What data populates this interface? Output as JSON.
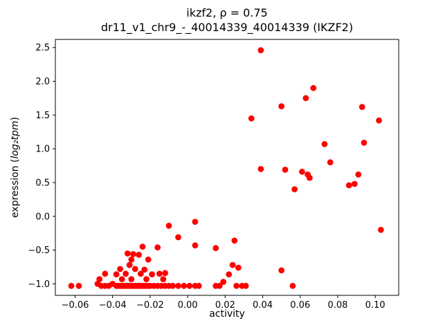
{
  "chart_data": {
    "type": "scatter",
    "title": "ikzf2, ρ = 0.75",
    "subtitle": "dr11_v1_chr9_-_40014339_40014339 (IKZF2)",
    "xlabel": "activity",
    "ylabel_prefix": "expression (",
    "ylabel_math": "log₂tpm",
    "ylabel_suffix": ")",
    "xlim": [
      -0.0705,
      0.1125
    ],
    "ylim": [
      -1.17,
      2.62
    ],
    "xticks": [
      -0.06,
      -0.04,
      -0.02,
      0.0,
      0.02,
      0.04,
      0.06,
      0.08,
      0.1
    ],
    "xtick_labels": [
      "−0.06",
      "−0.04",
      "−0.02",
      "0.00",
      "0.02",
      "0.04",
      "0.06",
      "0.08",
      "0.10"
    ],
    "yticks": [
      -1.0,
      -0.5,
      0.0,
      0.5,
      1.0,
      1.5,
      2.0,
      2.5
    ],
    "ytick_labels": [
      "−1.0",
      "−0.5",
      "0.0",
      "0.5",
      "1.0",
      "1.5",
      "2.0",
      "2.5"
    ],
    "grid": false,
    "legend": null,
    "marker_color": "#ff0000",
    "points": [
      [
        0.039,
        2.46
      ],
      [
        0.067,
        1.9
      ],
      [
        0.063,
        1.75
      ],
      [
        0.05,
        1.63
      ],
      [
        0.093,
        1.62
      ],
      [
        0.034,
        1.45
      ],
      [
        0.102,
        1.42
      ],
      [
        0.094,
        1.09
      ],
      [
        0.073,
        1.07
      ],
      [
        0.076,
        0.8
      ],
      [
        0.039,
        0.7
      ],
      [
        0.052,
        0.69
      ],
      [
        0.061,
        0.66
      ],
      [
        0.064,
        0.62
      ],
      [
        0.091,
        0.62
      ],
      [
        0.065,
        0.57
      ],
      [
        0.089,
        0.48
      ],
      [
        0.086,
        0.46
      ],
      [
        0.057,
        0.4
      ],
      [
        0.103,
        -0.2
      ],
      [
        0.05,
        -0.8
      ],
      [
        0.056,
        -1.03
      ],
      [
        -0.01,
        -0.14
      ],
      [
        0.004,
        -0.08
      ],
      [
        -0.005,
        -0.31
      ],
      [
        0.004,
        -0.43
      ],
      [
        -0.016,
        -0.46
      ],
      [
        0.015,
        -0.47
      ],
      [
        0.025,
        -0.36
      ],
      [
        0.024,
        -0.72
      ],
      [
        0.027,
        -0.76
      ],
      [
        -0.032,
        -0.55
      ],
      [
        -0.029,
        -0.56
      ],
      [
        -0.026,
        -0.57
      ],
      [
        -0.024,
        -0.45
      ],
      [
        -0.03,
        -0.64
      ],
      [
        -0.021,
        -0.64
      ],
      [
        -0.031,
        -0.72
      ],
      [
        -0.036,
        -0.78
      ],
      [
        -0.028,
        -0.78
      ],
      [
        -0.023,
        -0.79
      ],
      [
        -0.044,
        -0.85
      ],
      [
        -0.038,
        -0.86
      ],
      [
        -0.033,
        -0.85
      ],
      [
        -0.025,
        -0.85
      ],
      [
        -0.019,
        -0.86
      ],
      [
        -0.015,
        -0.85
      ],
      [
        -0.012,
        -0.84
      ],
      [
        0.022,
        -0.86
      ],
      [
        -0.047,
        -0.93
      ],
      [
        -0.035,
        -0.93
      ],
      [
        -0.03,
        -0.93
      ],
      [
        -0.022,
        -0.93
      ],
      [
        -0.013,
        -0.93
      ],
      [
        0.019,
        -0.97
      ],
      [
        -0.062,
        -1.03
      ],
      [
        -0.058,
        -1.03
      ],
      [
        -0.048,
        -1.0
      ],
      [
        -0.046,
        -1.03
      ],
      [
        -0.044,
        -1.03
      ],
      [
        -0.042,
        -1.03
      ],
      [
        -0.04,
        -1.0
      ],
      [
        -0.038,
        -1.03
      ],
      [
        -0.037,
        -1.03
      ],
      [
        -0.036,
        -1.03
      ],
      [
        -0.035,
        -1.03
      ],
      [
        -0.034,
        -1.03
      ],
      [
        -0.033,
        -1.03
      ],
      [
        -0.032,
        -1.03
      ],
      [
        -0.031,
        -1.03
      ],
      [
        -0.03,
        -1.03
      ],
      [
        -0.029,
        -1.03
      ],
      [
        -0.028,
        -1.03
      ],
      [
        -0.027,
        -1.03
      ],
      [
        -0.026,
        -1.03
      ],
      [
        -0.025,
        -1.03
      ],
      [
        -0.024,
        -1.03
      ],
      [
        -0.023,
        -1.03
      ],
      [
        -0.022,
        -1.03
      ],
      [
        -0.021,
        -1.03
      ],
      [
        -0.02,
        -1.03
      ],
      [
        -0.018,
        -1.03
      ],
      [
        -0.016,
        -1.03
      ],
      [
        -0.014,
        -1.03
      ],
      [
        -0.012,
        -1.03
      ],
      [
        -0.01,
        -1.03
      ],
      [
        -0.008,
        -1.03
      ],
      [
        -0.005,
        -1.03
      ],
      [
        -0.002,
        -1.03
      ],
      [
        0.001,
        -1.03
      ],
      [
        0.004,
        -1.03
      ],
      [
        0.006,
        -1.03
      ],
      [
        0.015,
        -1.03
      ],
      [
        0.017,
        -1.03
      ],
      [
        0.026,
        -1.03
      ],
      [
        0.029,
        -1.03
      ],
      [
        0.031,
        -1.03
      ]
    ]
  }
}
